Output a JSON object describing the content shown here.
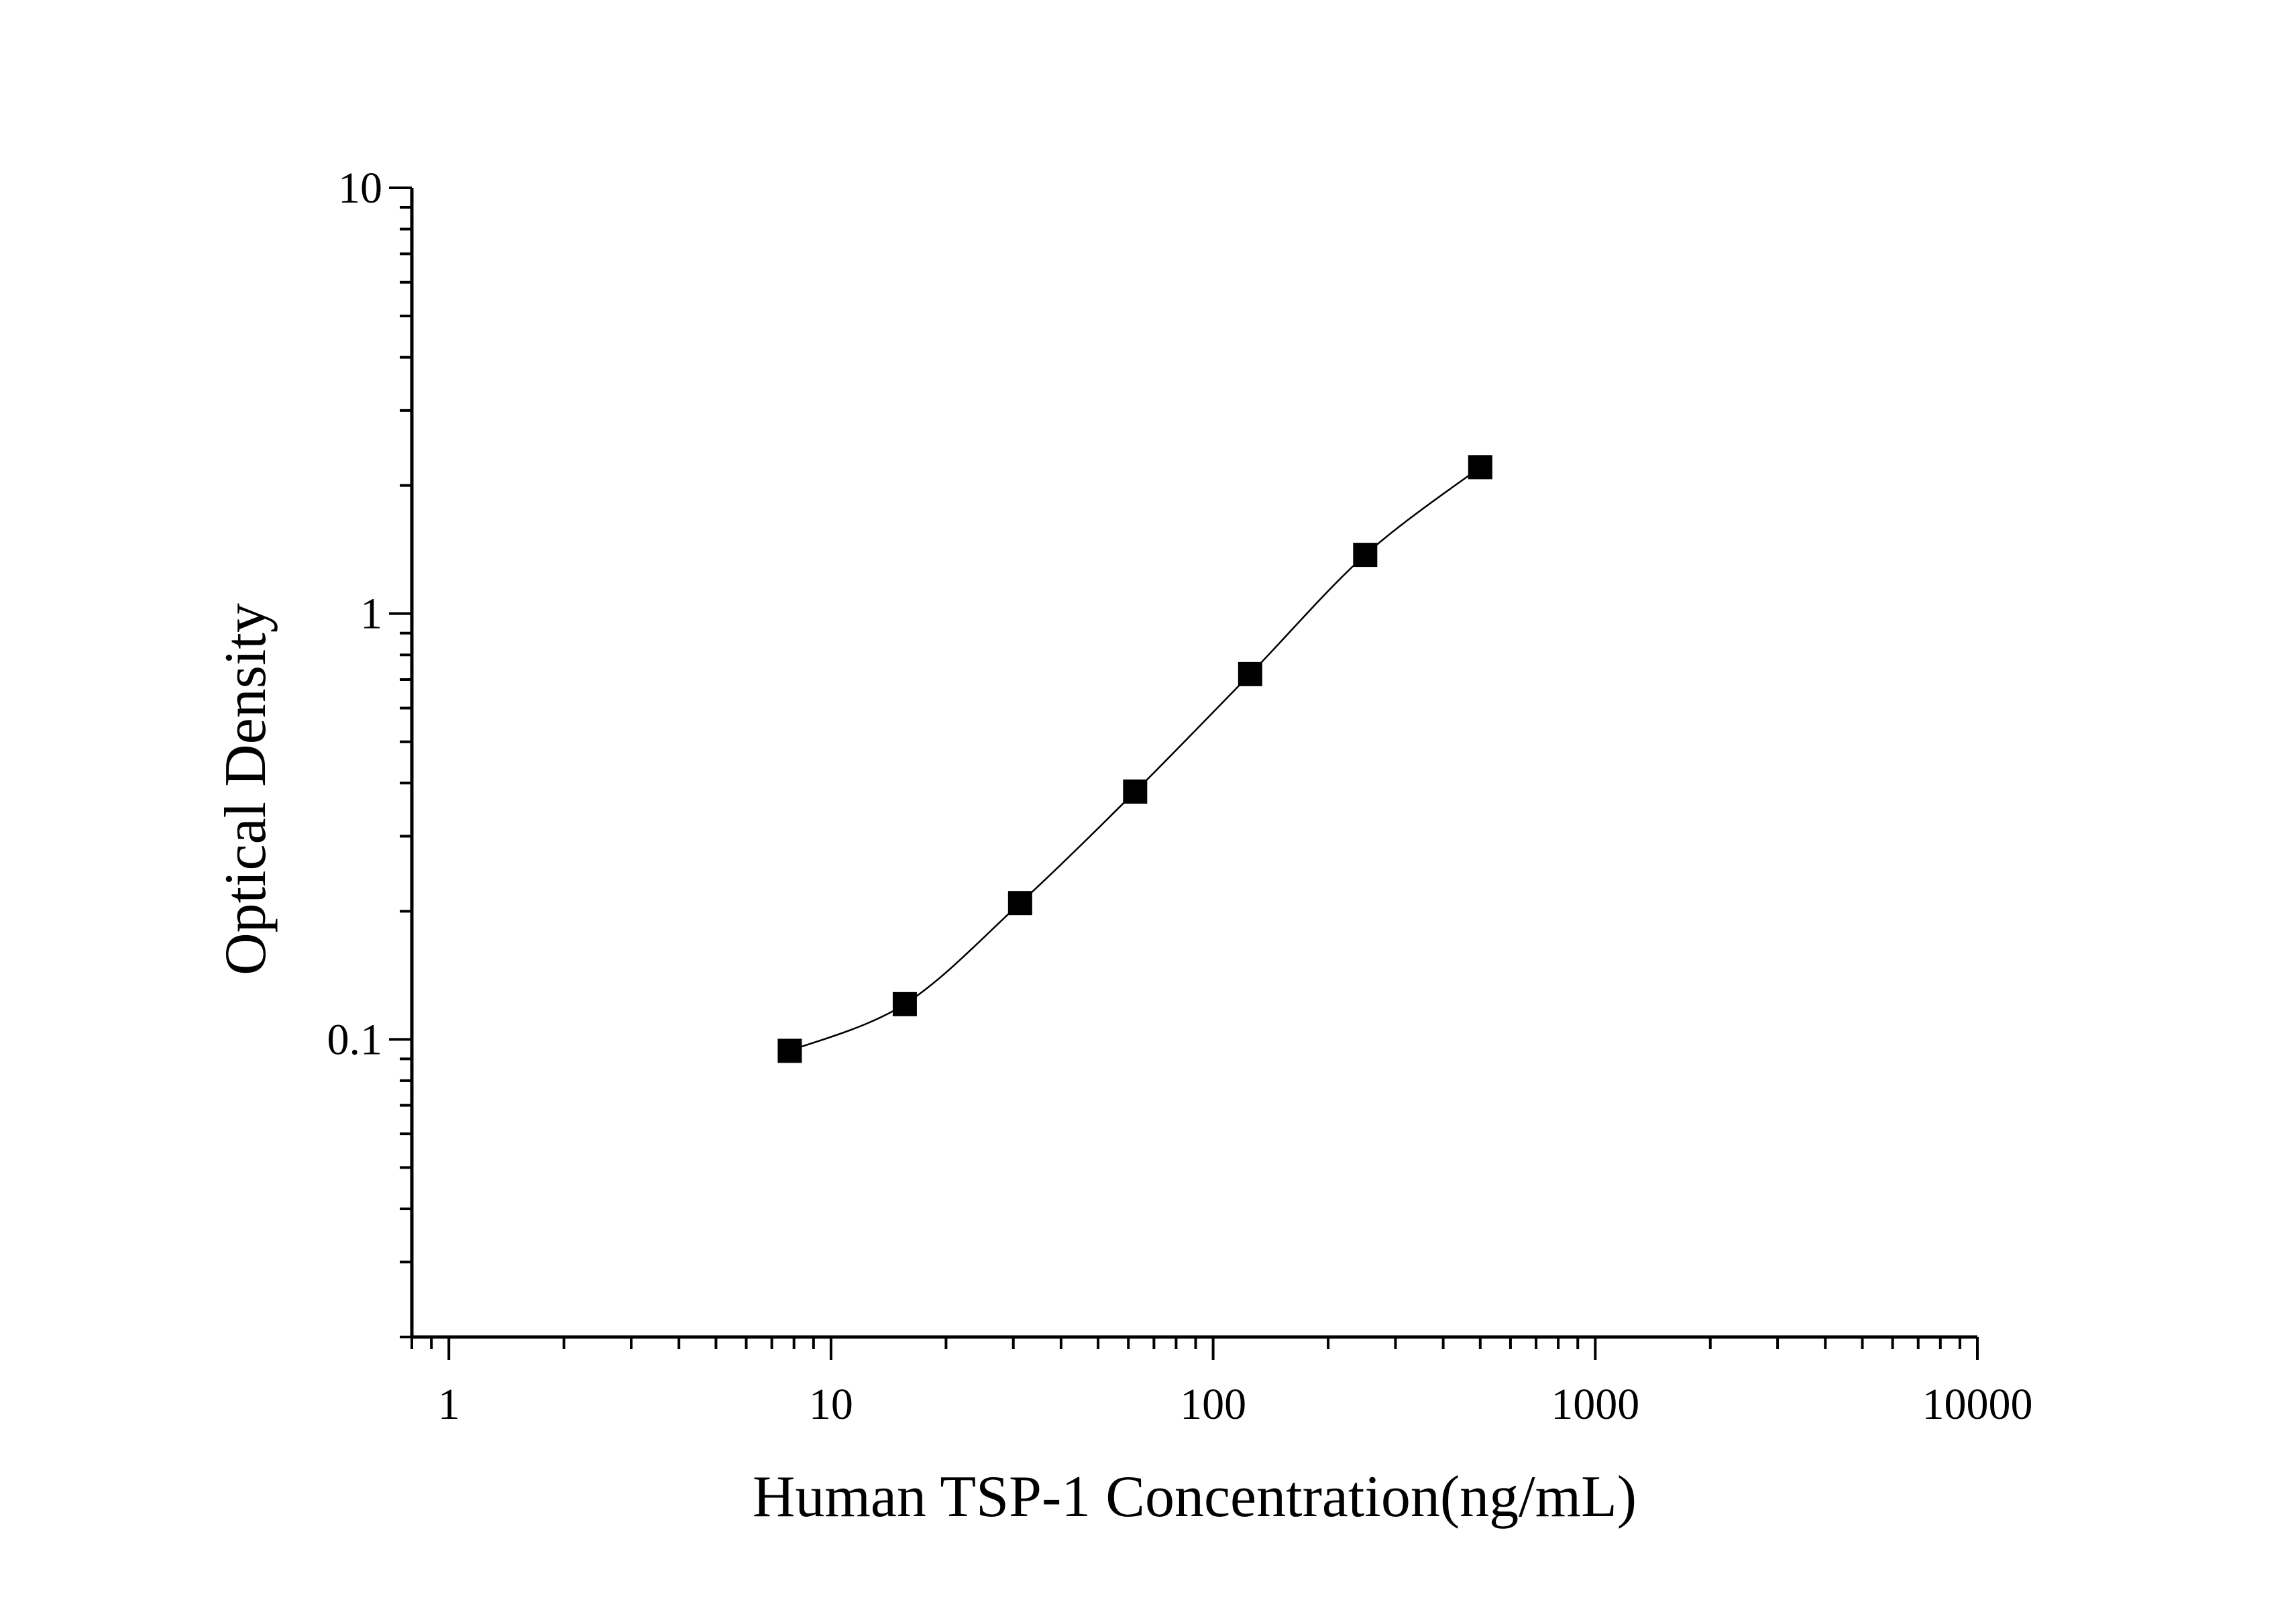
{
  "chart_data": {
    "type": "scatter",
    "title": "",
    "xlabel": "Human TSP-1 Concentration(ng/mL)",
    "ylabel": "Optical Density",
    "x_scale": "log",
    "y_scale": "log",
    "xlim": [
      0.8,
      10000
    ],
    "ylim": [
      0.02,
      10
    ],
    "x_ticks": [
      {
        "value": 1,
        "label": "1"
      },
      {
        "value": 10,
        "label": "10"
      },
      {
        "value": 100,
        "label": "100"
      },
      {
        "value": 1000,
        "label": "1000"
      },
      {
        "value": 10000,
        "label": "10000"
      }
    ],
    "y_ticks": [
      {
        "value": 0.1,
        "label": "0.1"
      },
      {
        "value": 1,
        "label": "1"
      },
      {
        "value": 10,
        "label": "10"
      }
    ],
    "grid": false,
    "legend": "none",
    "series": [
      {
        "marker": "square",
        "color": "#000000",
        "x": [
          7.8,
          15.6,
          31.25,
          62.5,
          125,
          250,
          500
        ],
        "y": [
          0.094,
          0.121,
          0.209,
          0.382,
          0.721,
          1.374,
          2.208
        ]
      }
    ]
  }
}
